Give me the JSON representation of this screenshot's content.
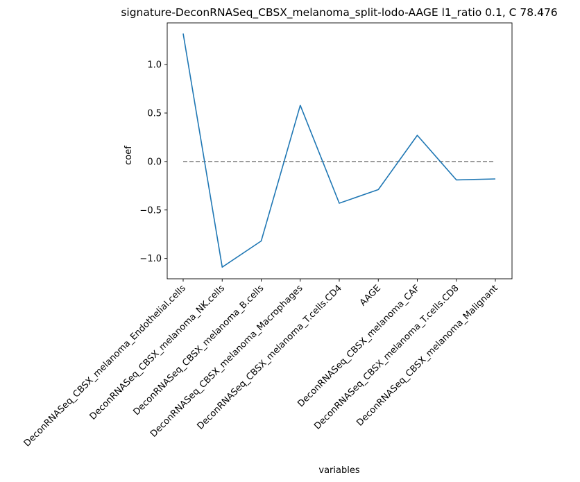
{
  "chart_data": {
    "type": "line",
    "title": "signature-DeconRNASeq_CBSX_melanoma_split-lodo-AAGE l1_ratio 0.1, C 78.476",
    "xlabel": "variables",
    "ylabel": "coef",
    "categories": [
      "DeconRNASeq_CBSX_melanoma_Endothelial.cells",
      "DeconRNASeq_CBSX_melanoma_NK.cells",
      "DeconRNASeq_CBSX_melanoma_B.cells",
      "DeconRNASeq_CBSX_melanoma_Macrophages",
      "DeconRNASeq_CBSX_melanoma_T.cells.CD4",
      "AAGE",
      "DeconRNASeq_CBSX_melanoma_CAF",
      "DeconRNASeq_CBSX_melanoma_T.cells.CD8",
      "DeconRNASeq_CBSX_melanoma_Malignant"
    ],
    "series": [
      {
        "values": [
          1.32,
          -1.09,
          -0.82,
          0.58,
          -0.43,
          -0.29,
          0.27,
          -0.19,
          -0.18
        ],
        "color": "#1f77b4"
      }
    ],
    "reference_line": {
      "y": 0.0,
      "style": "dashed",
      "color": "#808080"
    },
    "yticks": [
      -1.0,
      -0.5,
      0.0,
      0.5,
      1.0
    ],
    "ytick_labels": [
      "−1.0",
      "−0.5",
      "0.0",
      "0.5",
      "1.0"
    ],
    "ylim": [
      -1.21,
      1.43
    ],
    "grid": false
  }
}
